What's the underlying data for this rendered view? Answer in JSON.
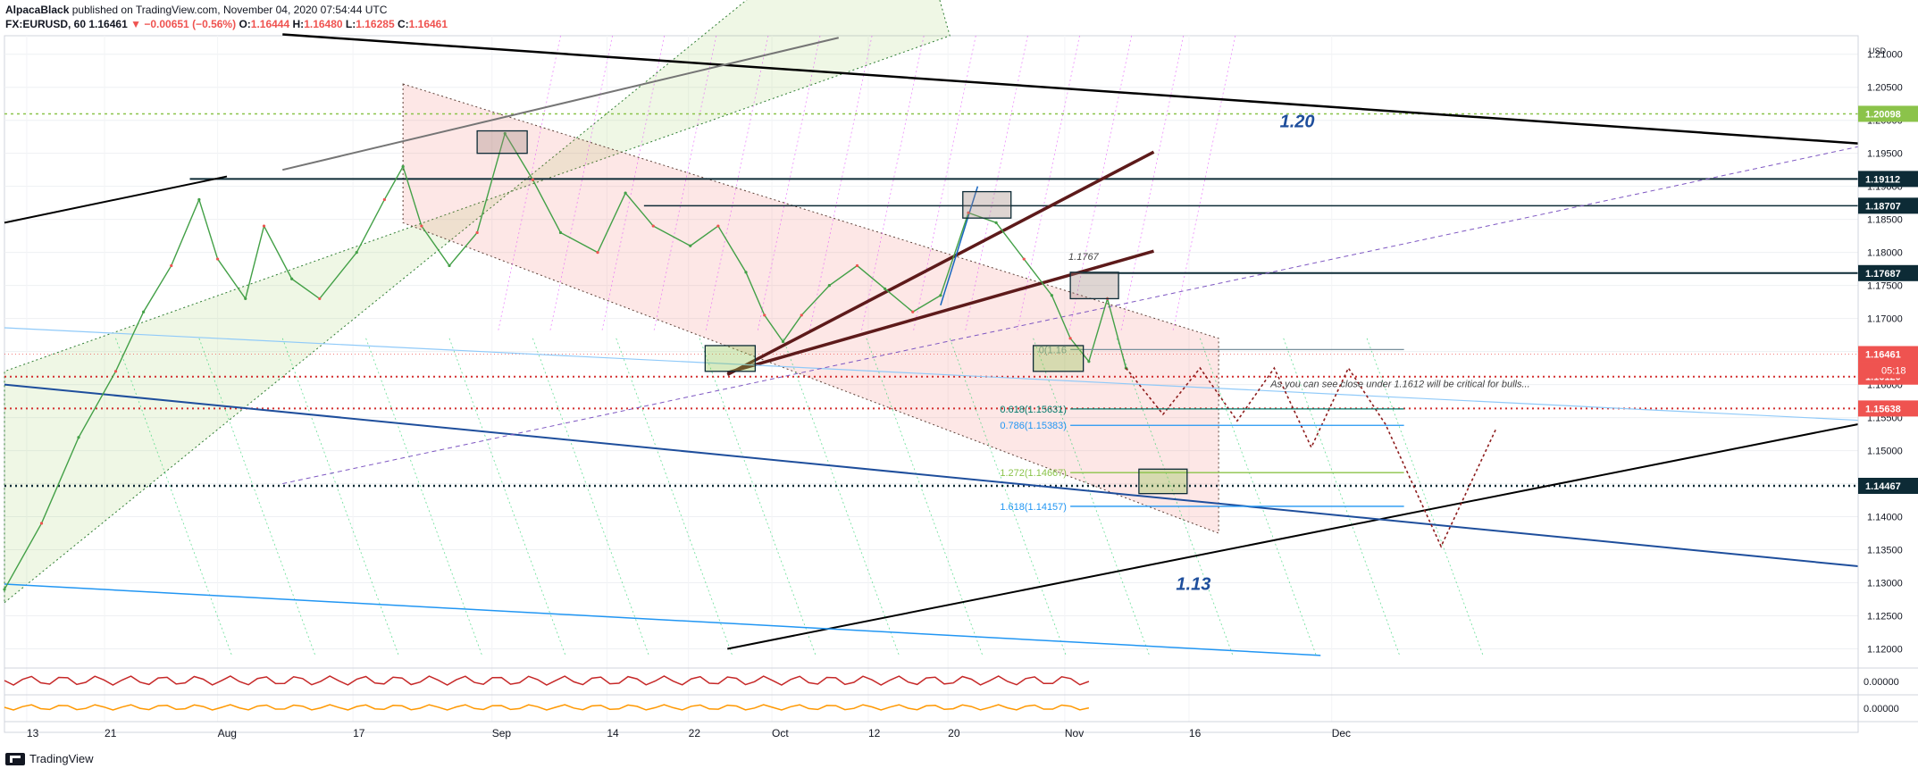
{
  "header": {
    "author": "AlpacaBlack",
    "published": "published on TradingView.com, November 04, 2020 07:54:44 UTC",
    "symbol": "FX:EURUSD, 60",
    "last": "1.16461",
    "change": "−0.00651 (−0.56%)",
    "o_label": "O:",
    "o": "1.16444",
    "h_label": "H:",
    "h": "1.16480",
    "l_label": "L:",
    "l": "1.16285",
    "c_label": "C:",
    "c": "1.16461"
  },
  "footer": {
    "brand": "TradingView"
  },
  "chart_data": {
    "type": "line",
    "symbol": "EURUSD",
    "timeframe": "60",
    "currency": "USD",
    "ylim": [
      1.1175,
      1.2128
    ],
    "y_ticks": [
      "1.21000",
      "1.20500",
      "1.20000",
      "1.19500",
      "1.19000",
      "1.18500",
      "1.18000",
      "1.17500",
      "1.17000",
      "1.16500",
      "1.16000",
      "1.15500",
      "1.15000",
      "1.14500",
      "1.14000",
      "1.13500",
      "1.13000",
      "1.12500",
      "1.12000"
    ],
    "x_ticks": [
      "13",
      "21",
      "Aug",
      "17",
      "Sep",
      "14",
      "22",
      "Oct",
      "12",
      "20",
      "Nov",
      "16",
      "Dec"
    ],
    "price_labels": [
      {
        "value": 1.20098,
        "label": "1.20098",
        "color": "#8bc34a"
      },
      {
        "value": 1.19112,
        "label": "1.19112",
        "color": "#0d2b36"
      },
      {
        "value": 1.18707,
        "label": "1.18707",
        "color": "#0d2b36"
      },
      {
        "value": 1.17687,
        "label": "1.17687",
        "color": "#0d2b36"
      },
      {
        "value": 1.16461,
        "label": "1.16461",
        "color": "#ef5350"
      },
      {
        "value": 1.1612,
        "label": "1.16120",
        "color": "#ef5350"
      },
      {
        "value": 1.15638,
        "label": "1.15638",
        "color": "#ef5350"
      },
      {
        "value": 1.14467,
        "label": "1.14467",
        "color": "#0d2b36"
      }
    ],
    "countdown": "05:18",
    "fib_levels": [
      {
        "label": "0(1.16",
        "value": 1.1653
      },
      {
        "label": "0.618(1.15631)",
        "value": 1.15631
      },
      {
        "label": "0.786(1.15383)",
        "value": 1.15383
      },
      {
        "label": "1.272(1.14667)",
        "value": 1.14667
      },
      {
        "label": "1.618(1.14157)",
        "value": 1.14157
      }
    ],
    "annotations": [
      {
        "text": "1.20",
        "value": 1.2
      },
      {
        "text": "1.13",
        "value": 1.13
      },
      {
        "text": "1.1767",
        "value": 1.1767
      },
      {
        "text": "As you can see close under 1.1612 will be critical for bulls..."
      }
    ],
    "price_path": [
      [
        0,
        1.129
      ],
      [
        0.02,
        1.139
      ],
      [
        0.04,
        1.152
      ],
      [
        0.06,
        1.162
      ],
      [
        0.075,
        1.171
      ],
      [
        0.09,
        1.178
      ],
      [
        0.105,
        1.188
      ],
      [
        0.115,
        1.179
      ],
      [
        0.13,
        1.173
      ],
      [
        0.14,
        1.184
      ],
      [
        0.155,
        1.176
      ],
      [
        0.17,
        1.173
      ],
      [
        0.19,
        1.18
      ],
      [
        0.205,
        1.188
      ],
      [
        0.215,
        1.193
      ],
      [
        0.225,
        1.184
      ],
      [
        0.24,
        1.178
      ],
      [
        0.255,
        1.183
      ],
      [
        0.27,
        1.198
      ],
      [
        0.285,
        1.191
      ],
      [
        0.3,
        1.183
      ],
      [
        0.32,
        1.18
      ],
      [
        0.335,
        1.189
      ],
      [
        0.35,
        1.184
      ],
      [
        0.37,
        1.181
      ],
      [
        0.385,
        1.184
      ],
      [
        0.4,
        1.177
      ],
      [
        0.41,
        1.1705
      ],
      [
        0.42,
        1.1665
      ],
      [
        0.43,
        1.1705
      ],
      [
        0.445,
        1.175
      ],
      [
        0.46,
        1.178
      ],
      [
        0.475,
        1.1745
      ],
      [
        0.49,
        1.171
      ],
      [
        0.505,
        1.1735
      ],
      [
        0.52,
        1.186
      ],
      [
        0.535,
        1.1845
      ],
      [
        0.55,
        1.179
      ],
      [
        0.565,
        1.1735
      ],
      [
        0.575,
        1.167
      ],
      [
        0.585,
        1.1635
      ],
      [
        0.595,
        1.173
      ],
      [
        0.605,
        1.1625
      ]
    ],
    "projection_path": [
      [
        0.605,
        1.1625
      ],
      [
        0.625,
        1.1555
      ],
      [
        0.645,
        1.1625
      ],
      [
        0.665,
        1.1545
      ],
      [
        0.685,
        1.1625
      ],
      [
        0.705,
        1.1505
      ],
      [
        0.725,
        1.1625
      ],
      [
        0.745,
        1.154
      ],
      [
        0.775,
        1.1355
      ],
      [
        0.805,
        1.1535
      ]
    ],
    "indicator_panes": [
      {
        "name": "pane-1",
        "value_label": "0.00000"
      },
      {
        "name": "pane-2",
        "value_label": "0.00000"
      }
    ],
    "grid": true,
    "legend": "none"
  }
}
